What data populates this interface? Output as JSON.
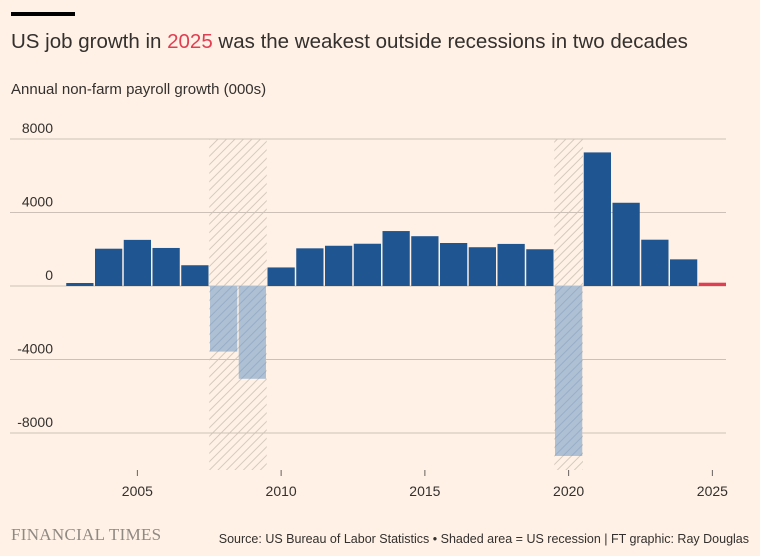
{
  "header": {
    "title_before": "US job growth in ",
    "title_highlight": "2025",
    "title_after": " was the weakest outside recessions in two decades",
    "subtitle": "Annual non-farm payroll growth (000s)"
  },
  "footer": {
    "logo": "FINANCIAL TIMES",
    "source": "Source: US Bureau of Labor Statistics • Shaded area = US recession | FT graphic: Ray Douglas"
  },
  "colors": {
    "bar": "#1f5591",
    "bar_recession": "#a1b6cd",
    "bar_highlight": "#e03e52",
    "grid": "#ccc1b7",
    "hatch": "#d5c9be",
    "axis_text": "#33302e"
  },
  "chart_data": {
    "type": "bar",
    "title": "US job growth in 2025 was the weakest outside recessions in two decades",
    "ylabel": "Annual non-farm payroll growth (000s)",
    "xlabel": "",
    "ylim": [
      -10000,
      8000
    ],
    "yticks": [
      8000,
      4000,
      0,
      -4000,
      -8000
    ],
    "ytick_labels": [
      "8000",
      "4000",
      "0",
      "-4000",
      "-8000"
    ],
    "xticks": [
      2005,
      2010,
      2015,
      2020,
      2025
    ],
    "xtick_labels": [
      "2005",
      "2010",
      "2015",
      "2020",
      "2025"
    ],
    "categories": [
      2003,
      2004,
      2005,
      2006,
      2007,
      2008,
      2009,
      2010,
      2011,
      2012,
      2013,
      2014,
      2015,
      2016,
      2017,
      2018,
      2019,
      2020,
      2021,
      2022,
      2023,
      2024,
      2025
    ],
    "values": [
      110,
      2030,
      2510,
      2070,
      1130,
      -3570,
      -5050,
      1010,
      2050,
      2190,
      2300,
      2990,
      2710,
      2340,
      2110,
      2290,
      2000,
      -9250,
      7270,
      4530,
      2520,
      1450,
      180
    ],
    "recession": [
      false,
      false,
      false,
      false,
      false,
      true,
      true,
      false,
      false,
      false,
      false,
      false,
      false,
      false,
      false,
      false,
      false,
      true,
      false,
      false,
      false,
      false,
      false
    ],
    "highlight_year": 2025,
    "recession_periods": [
      [
        2007.5,
        2009.5
      ],
      [
        2019.5,
        2020.5
      ]
    ],
    "grid": true
  }
}
